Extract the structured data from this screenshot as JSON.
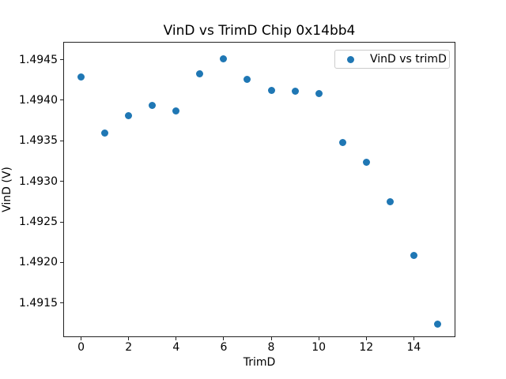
{
  "figure": {
    "background_color": "#ffffff",
    "text_color": "#000000",
    "spine_color": "#222222"
  },
  "legend": {
    "label": "VinD vs trimD",
    "position": "upper right"
  },
  "chart_data": {
    "type": "scatter",
    "title": "VinD vs TrimD Chip 0x14bb4",
    "xlabel": "TrimD",
    "ylabel": "VinD (V)",
    "legend_entries": [
      "VinD vs trimD"
    ],
    "legend_position": "upper right",
    "grid": false,
    "marker": "circle",
    "marker_color": "#1f77b4",
    "x": [
      0,
      1,
      2,
      3,
      4,
      5,
      6,
      7,
      8,
      9,
      10,
      11,
      12,
      13,
      14,
      15
    ],
    "y": [
      1.49429,
      1.4936,
      1.49381,
      1.49394,
      1.49387,
      1.49433,
      1.49451,
      1.49426,
      1.49412,
      1.49411,
      1.49408,
      1.49348,
      1.49324,
      1.49275,
      1.49209,
      1.49124
    ],
    "xlim": [
      -0.75,
      15.75
    ],
    "ylim": [
      1.49108,
      1.49472
    ],
    "xticks": [
      0,
      2,
      4,
      6,
      8,
      10,
      12,
      14
    ],
    "xtick_labels": [
      "0",
      "2",
      "4",
      "6",
      "8",
      "10",
      "12",
      "14"
    ],
    "yticks": [
      1.4915,
      1.492,
      1.4925,
      1.493,
      1.4935,
      1.494,
      1.4945
    ],
    "ytick_labels": [
      "1.4915",
      "1.4920",
      "1.4925",
      "1.4930",
      "1.4935",
      "1.4940",
      "1.4945"
    ]
  }
}
